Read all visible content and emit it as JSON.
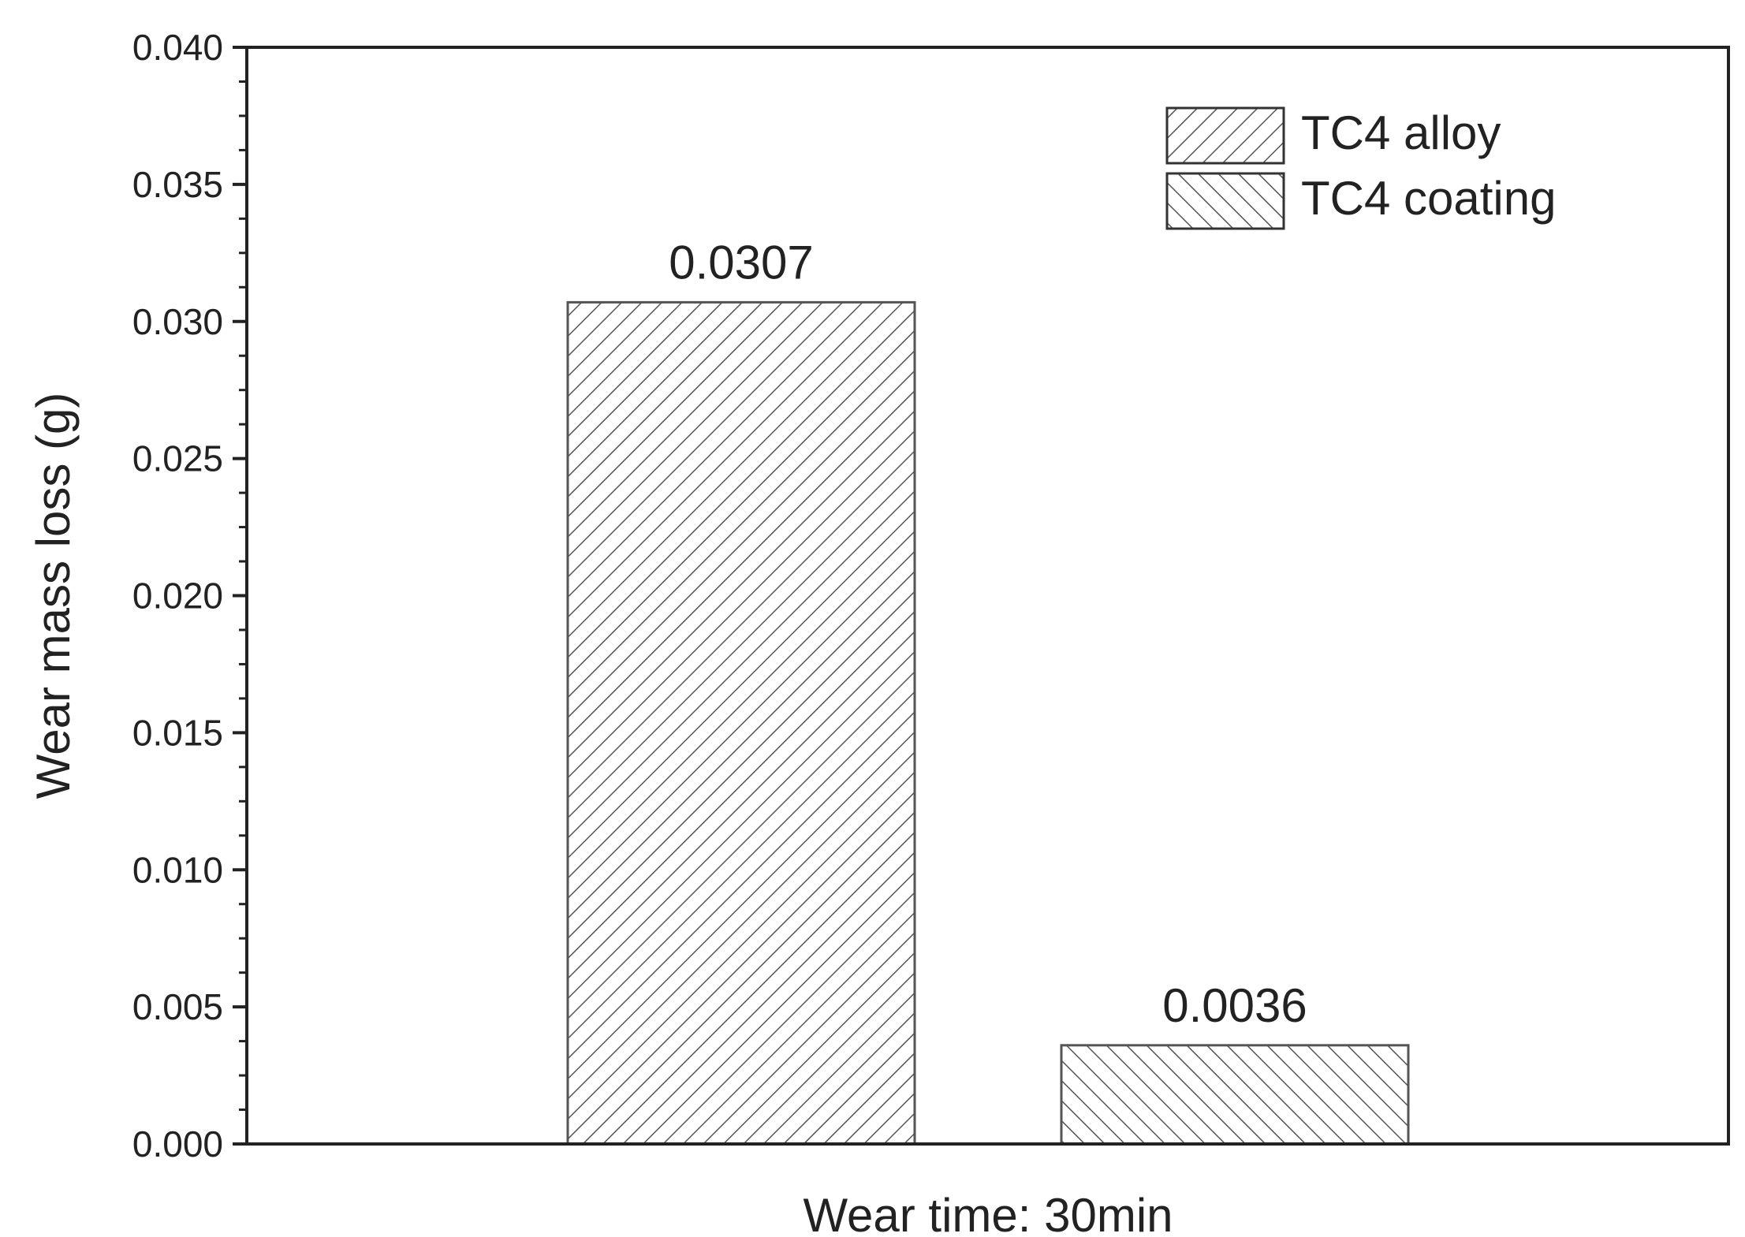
{
  "chart_data": {
    "type": "bar",
    "categories": [
      "Wear time: 30min"
    ],
    "series": [
      {
        "name": "TC4 alloy",
        "values": [
          0.0307
        ],
        "pattern": "hatch-forward"
      },
      {
        "name": "TC4 coating",
        "values": [
          0.0036
        ],
        "pattern": "hatch-backward"
      }
    ],
    "data_labels": [
      "0.0307",
      "0.0036"
    ],
    "xlabel": "Wear time: 30min",
    "ylabel": "Wear mass loss (g)",
    "ylim": [
      0,
      0.04
    ],
    "yticks": [
      "0.000",
      "0.005",
      "0.010",
      "0.015",
      "0.020",
      "0.025",
      "0.030",
      "0.035",
      "0.040"
    ],
    "grid": false,
    "legend_position": "top-right",
    "colors": {
      "bar_stroke": "#555555",
      "hatch": "#555555",
      "axis": "#222222",
      "background": "#ffffff"
    }
  }
}
